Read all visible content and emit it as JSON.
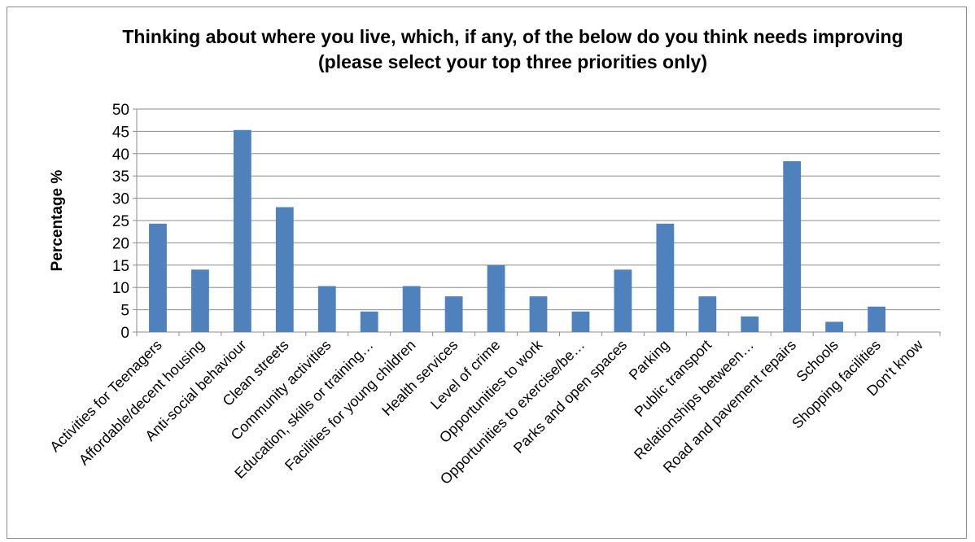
{
  "chart_data": {
    "type": "bar",
    "title": "Thinking about where you live, which, if any, of the below do you think needs improving (please select your top three priorities only)",
    "xlabel": "",
    "ylabel": "Percentage %",
    "ylim": [
      0,
      50
    ],
    "yticks": [
      0,
      5,
      10,
      15,
      20,
      25,
      30,
      35,
      40,
      45,
      50
    ],
    "grid": true,
    "legend": "none",
    "bar_color": "#4f81bd",
    "categories": [
      "Activities for Teenagers",
      "Affordable/decent housing",
      "Anti-social behaviour",
      "Clean streets",
      "Community activities",
      "Education, skills or training…",
      "Facilities for young children",
      "Health services",
      "Level of crime",
      "Opportunities to work",
      "Opportunities to exercise/be…",
      "Parks and open spaces",
      "Parking",
      "Public transport",
      "Relationships between…",
      "Road and pavement repairs",
      "Schools",
      "Shopping facilities",
      "Don't know"
    ],
    "values": [
      24.3,
      14.0,
      45.3,
      28.0,
      10.3,
      4.6,
      10.3,
      8.0,
      15.0,
      8.0,
      4.6,
      14.0,
      24.3,
      8.0,
      3.5,
      38.3,
      2.3,
      5.7,
      0
    ]
  }
}
